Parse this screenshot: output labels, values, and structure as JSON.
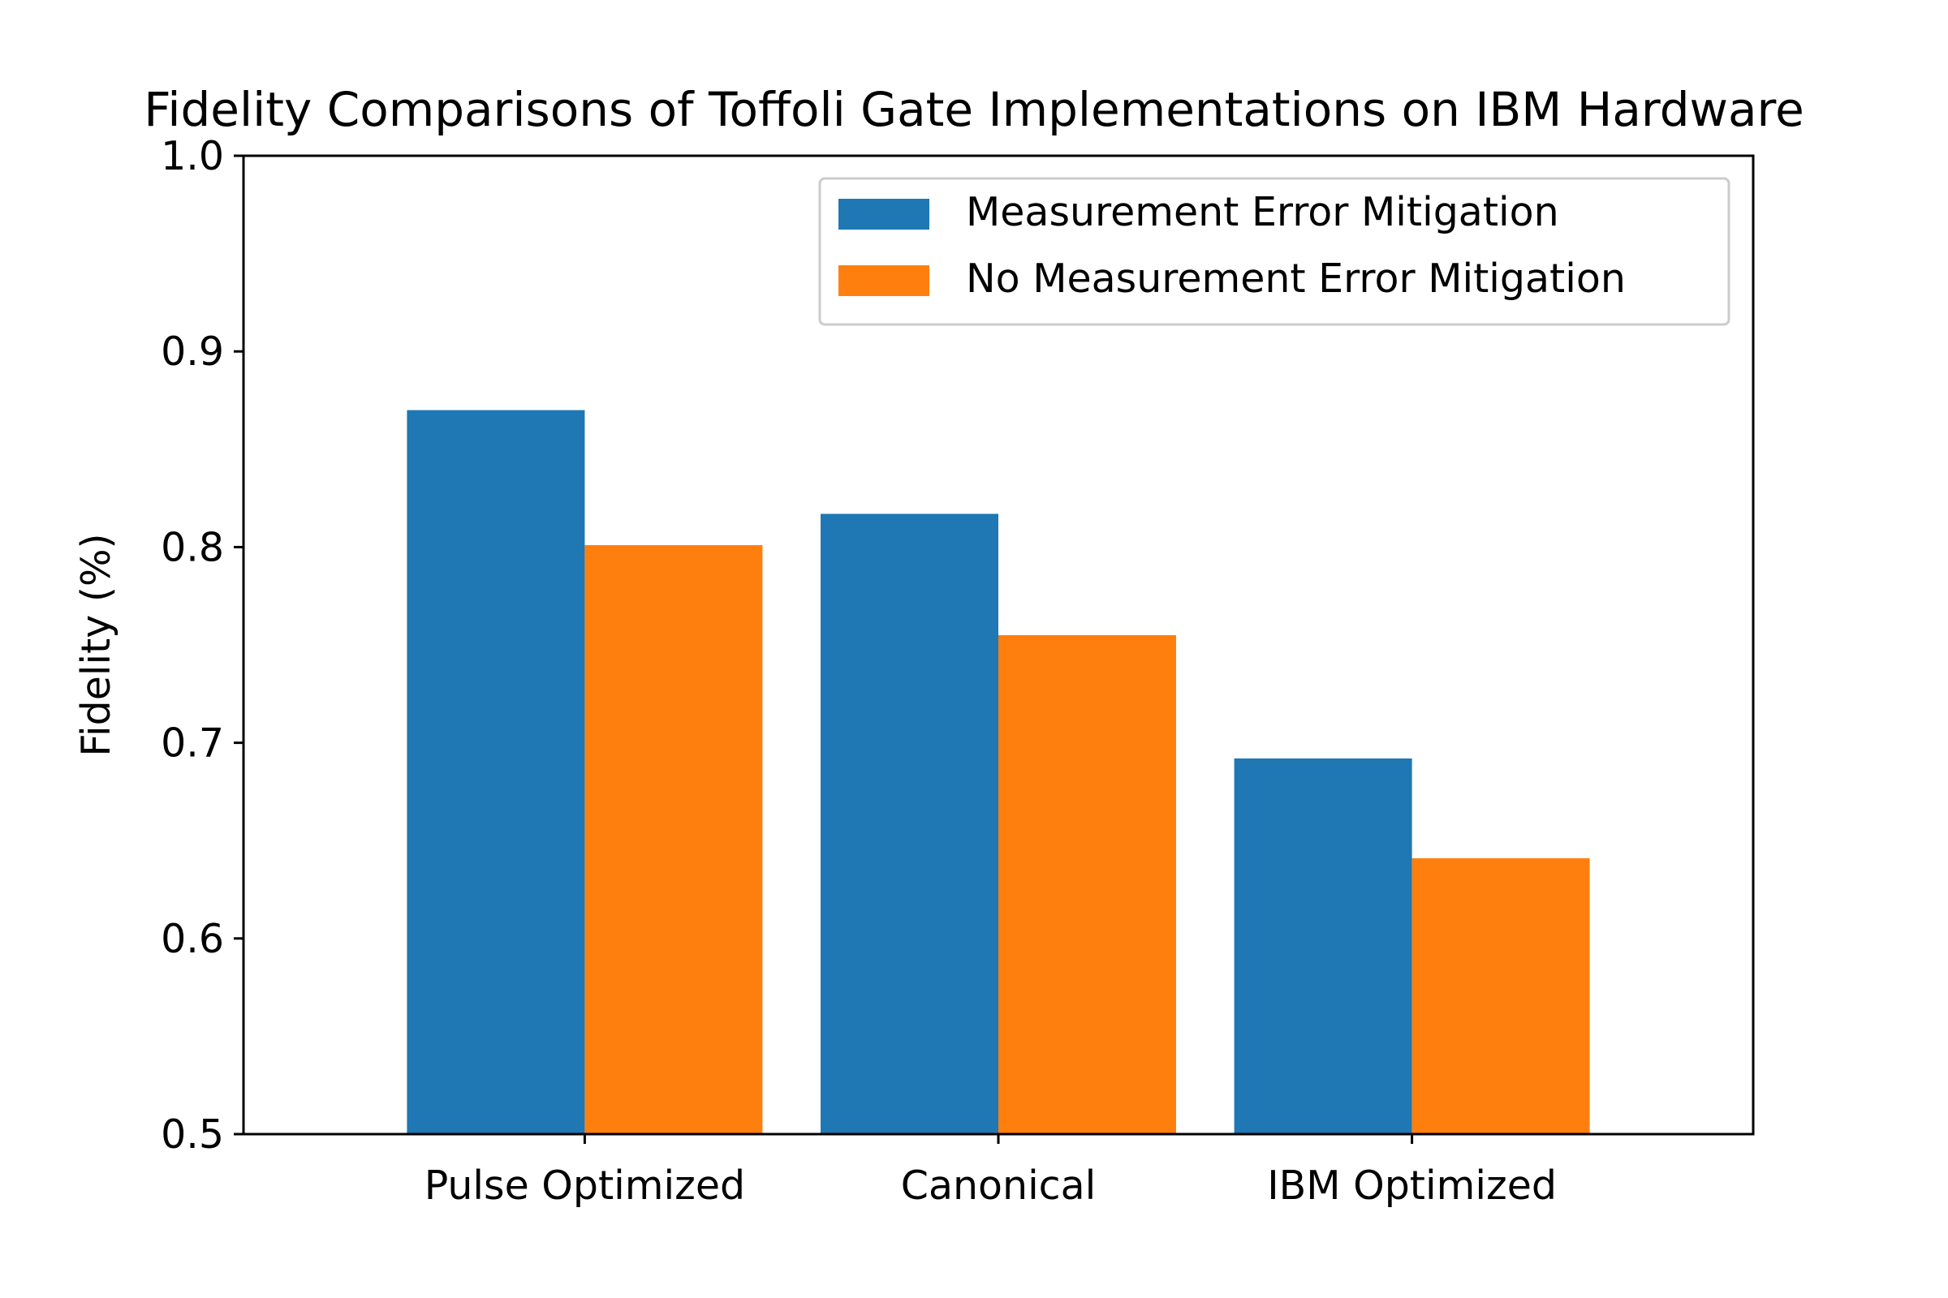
{
  "chart_data": {
    "type": "bar",
    "title": "Fidelity Comparisons of Toffoli Gate Implementations on IBM Hardware",
    "xlabel": "",
    "ylabel": "Fidelity (%)",
    "categories": [
      "Pulse Optimized",
      "Canonical",
      "IBM Optimized"
    ],
    "series": [
      {
        "name": "Measurement Error Mitigation",
        "color": "#1f77b4",
        "values": [
          0.87,
          0.817,
          0.692
        ]
      },
      {
        "name": "No Measurement Error Mitigation",
        "color": "#ff7f0e",
        "values": [
          0.801,
          0.755,
          0.641
        ]
      }
    ],
    "ylim": [
      0.5,
      1.0
    ],
    "yticks": [
      "0.5",
      "0.6",
      "0.7",
      "0.8",
      "0.9",
      "1.0"
    ],
    "legend_position": "top-right",
    "grid": false
  }
}
